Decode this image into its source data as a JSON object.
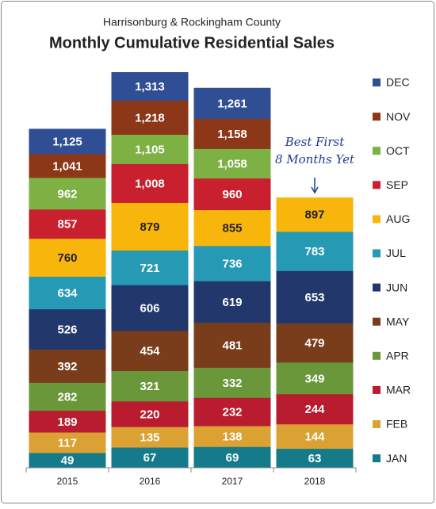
{
  "chart_data": {
    "type": "cumulative-bar",
    "subtitle": "Harrisonburg & Rockingham County",
    "title": "Monthly Cumulative Residential Sales",
    "categories": [
      "2015",
      "2016",
      "2017",
      "2018"
    ],
    "series": [
      {
        "name": "JAN",
        "color": "#157a8a",
        "values": [
          49,
          67,
          69,
          63
        ]
      },
      {
        "name": "FEB",
        "color": "#dba233",
        "values": [
          117,
          135,
          138,
          144
        ]
      },
      {
        "name": "MAR",
        "color": "#b81c2e",
        "values": [
          189,
          220,
          232,
          244
        ]
      },
      {
        "name": "APR",
        "color": "#6a973a",
        "values": [
          282,
          321,
          332,
          349
        ]
      },
      {
        "name": "MAY",
        "color": "#7a3d1c",
        "values": [
          392,
          454,
          481,
          479
        ]
      },
      {
        "name": "JUN",
        "color": "#22386d",
        "values": [
          526,
          606,
          619,
          653
        ]
      },
      {
        "name": "JUL",
        "color": "#2699b4",
        "values": [
          634,
          721,
          736,
          783
        ]
      },
      {
        "name": "AUG",
        "color": "#f8b60c",
        "values": [
          760,
          879,
          855,
          897
        ]
      },
      {
        "name": "SEP",
        "color": "#c8202e",
        "values": [
          857,
          1008,
          960,
          null
        ]
      },
      {
        "name": "OCT",
        "color": "#7db143",
        "values": [
          962,
          1105,
          1058,
          null
        ]
      },
      {
        "name": "NOV",
        "color": "#8c3717",
        "values": [
          1041,
          1218,
          1158,
          null
        ]
      },
      {
        "name": "DEC",
        "color": "#2f4e93",
        "values": [
          1125,
          1313,
          1261,
          null
        ]
      }
    ],
    "value_labels": [
      [
        "49",
        "67",
        "69",
        "63"
      ],
      [
        "117",
        "135",
        "138",
        "144"
      ],
      [
        "189",
        "220",
        "232",
        "244"
      ],
      [
        "282",
        "321",
        "332",
        "349"
      ],
      [
        "392",
        "454",
        "481",
        "479"
      ],
      [
        "526",
        "606",
        "619",
        "653"
      ],
      [
        "634",
        "721",
        "736",
        "783"
      ],
      [
        "760",
        "879",
        "855",
        "897"
      ],
      [
        "857",
        "1,008",
        "960",
        null
      ],
      [
        "962",
        "1,105",
        "1,058",
        null
      ],
      [
        "1,041",
        "1,218",
        "1,158",
        null
      ],
      [
        "1,125",
        "1,313",
        "1,261",
        null
      ]
    ],
    "dark_label_series": "AUG",
    "annotation": {
      "lines": [
        "Best  First",
        "8 Months Yet"
      ],
      "category": "2018"
    },
    "legend": "right"
  }
}
